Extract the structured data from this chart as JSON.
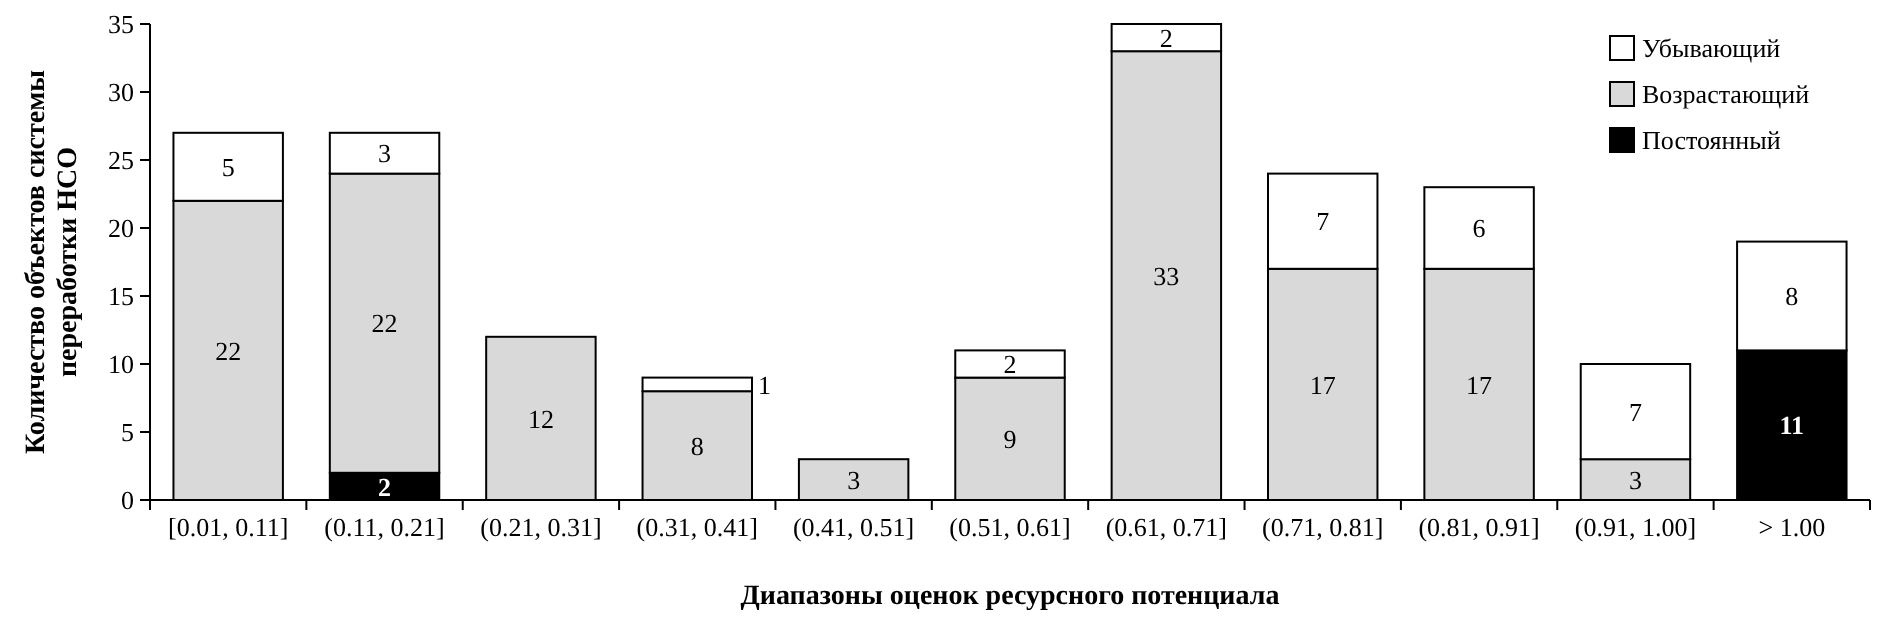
{
  "chart_data": {
    "type": "bar",
    "stacked": true,
    "xlabel": "Диапазоны оценок ресурсного потенциала",
    "ylabel": "Количество объектов системы переработки НСО",
    "categories": [
      "[0.01, 0.11]",
      "(0.11, 0.21]",
      "(0.21, 0.31]",
      "(0.31, 0.41]",
      "(0.41, 0.51]",
      "(0.51, 0.61]",
      "(0.61, 0.71]",
      "(0.71, 0.81]",
      "(0.81, 0.91]",
      "(0.91, 1.00]",
      "> 1.00"
    ],
    "series": [
      {
        "name": "Постоянный",
        "color": "#000000",
        "values": [
          0,
          2,
          0,
          0,
          0,
          0,
          0,
          0,
          0,
          0,
          11
        ],
        "value_labels": [
          null,
          "2",
          null,
          null,
          null,
          null,
          null,
          null,
          null,
          null,
          "11"
        ]
      },
      {
        "name": "Возрастающий",
        "color": "#d9d9d9",
        "values": [
          22,
          22,
          12,
          8,
          3,
          9,
          33,
          17,
          17,
          3,
          0
        ],
        "value_labels": [
          "22",
          "22",
          "12",
          "8",
          "3",
          "9",
          "33",
          "17",
          "17",
          "3",
          null
        ]
      },
      {
        "name": "Убывающий",
        "color": "#ffffff",
        "values": [
          5,
          3,
          0,
          1,
          0,
          2,
          2,
          7,
          6,
          7,
          8
        ],
        "value_labels": [
          "5",
          "3",
          null,
          "1",
          null,
          "2",
          "2",
          "7",
          "6",
          "7",
          "8"
        ]
      }
    ],
    "ylim": [
      0,
      35
    ],
    "yticks": [
      0,
      5,
      10,
      15,
      20,
      25,
      30,
      35
    ],
    "legend": "top right"
  }
}
